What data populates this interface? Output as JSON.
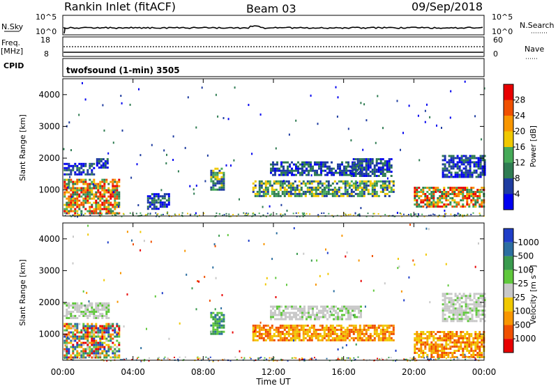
{
  "header": {
    "station": "Rankin Inlet (fitACF)",
    "beam": "Beam 03",
    "date": "09/Sep/2018"
  },
  "strips": {
    "nsky_label": "N.Sky",
    "nsky_ticks": [
      "10^5",
      "10^0"
    ],
    "nsearch_label": "N.Search",
    "nsearch_ticks": [
      "10^5",
      "10^0"
    ],
    "freq_label": "Freq.",
    "freq_unit": "[MHz]",
    "freq_ticks": [
      "18",
      "8"
    ],
    "nave_label": "Nave",
    "nave_ticks": [
      "60",
      "0"
    ],
    "cpid_label": "CPID",
    "cpid_text": "twofsound (1-min) 3505"
  },
  "time_axis": {
    "label": "Time UT",
    "ticks": [
      "00:00",
      "04:00",
      "08:00",
      "12:00",
      "16:00",
      "20:00",
      "00:00"
    ]
  },
  "chart_data": [
    {
      "type": "heatmap",
      "title": "",
      "xlabel": "Time UT",
      "ylabel": "Slant Range [km]",
      "yticks": [
        1000,
        2000,
        3000,
        4000
      ],
      "ylim": [
        180,
        4500
      ],
      "xlim_hours": [
        0,
        24
      ],
      "colorbar": {
        "label": "Power [dB]",
        "ticks": [
          "4",
          "8",
          "12",
          "16",
          "20",
          "24",
          "28"
        ],
        "colors": [
          "#0000f0",
          "#1e3ca0",
          "#2f7c52",
          "#46aa58",
          "#f0c800",
          "#f89600",
          "#f05000",
          "#e80000"
        ]
      },
      "regions": [
        {
          "t0": 0.05,
          "t1": 3.2,
          "r0": 250,
          "r1": 1350,
          "level": "strong"
        },
        {
          "t0": 0.05,
          "t1": 1.8,
          "r0": 1500,
          "r1": 1850,
          "level": "weak"
        },
        {
          "t0": 1.9,
          "t1": 2.6,
          "r0": 1700,
          "r1": 2000,
          "level": "weak"
        },
        {
          "t0": 4.8,
          "t1": 6.0,
          "r0": 400,
          "r1": 900,
          "level": "weak"
        },
        {
          "t0": 8.4,
          "t1": 9.2,
          "r0": 1000,
          "r1": 1700,
          "level": "medium"
        },
        {
          "t0": 10.8,
          "t1": 18.8,
          "r0": 800,
          "r1": 1300,
          "level": "medium"
        },
        {
          "t0": 11.8,
          "t1": 17.0,
          "r0": 1500,
          "r1": 1900,
          "level": "weak"
        },
        {
          "t0": 16.4,
          "t1": 18.7,
          "r0": 1450,
          "r1": 2000,
          "level": "weak"
        },
        {
          "t0": 20.0,
          "t1": 24.0,
          "r0": 500,
          "r1": 1100,
          "level": "strong"
        },
        {
          "t0": 21.6,
          "t1": 24.0,
          "r0": 1400,
          "r1": 2100,
          "level": "weak"
        }
      ]
    },
    {
      "type": "heatmap",
      "title": "",
      "xlabel": "Time UT",
      "ylabel": "Slant Range [km]",
      "yticks": [
        1000,
        2000,
        3000,
        4000
      ],
      "ylim": [
        180,
        4500
      ],
      "xlim_hours": [
        0,
        24
      ],
      "colorbar": {
        "label": "Velocity [m s⁻¹]",
        "ticks": [
          "1000",
          "500",
          "100",
          "25",
          "-25",
          "-100",
          "-500",
          "-1000"
        ],
        "colors": [
          "#1f3ec8",
          "#2c6ea0",
          "#3a9a4e",
          "#60c83c",
          "#c8c8c8",
          "#f0c800",
          "#f89600",
          "#f05000",
          "#e80000"
        ]
      },
      "regions": [
        {
          "t0": 0.05,
          "t1": 3.2,
          "r0": 250,
          "r1": 1350,
          "level": "mixed"
        },
        {
          "t0": 0.05,
          "t1": 2.6,
          "r0": 1500,
          "r1": 2000,
          "level": "grey"
        },
        {
          "t0": 8.4,
          "t1": 9.2,
          "r0": 1000,
          "r1": 1700,
          "level": "green"
        },
        {
          "t0": 10.8,
          "t1": 18.8,
          "r0": 800,
          "r1": 1300,
          "level": "orange"
        },
        {
          "t0": 11.8,
          "t1": 17.0,
          "r0": 1500,
          "r1": 1900,
          "level": "grey"
        },
        {
          "t0": 20.0,
          "t1": 24.0,
          "r0": 300,
          "r1": 1100,
          "level": "orange"
        },
        {
          "t0": 21.6,
          "t1": 24.0,
          "r0": 1400,
          "r1": 2300,
          "level": "grey"
        }
      ]
    }
  ]
}
